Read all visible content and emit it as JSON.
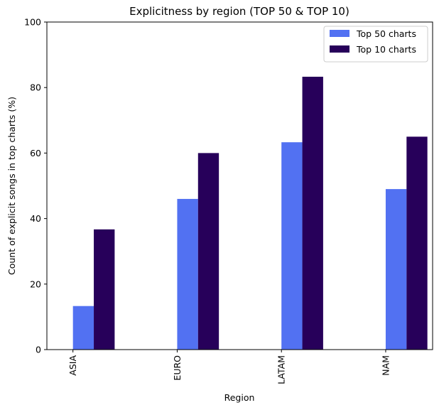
{
  "chart_data": {
    "type": "bar",
    "title": "Explicitness by region (TOP 50 & TOP 10)",
    "xlabel": "Region",
    "ylabel": "Count of explicit songs in top charts (%)",
    "categories": [
      "ASIA",
      "EURO",
      "LATAM",
      "NAM"
    ],
    "series": [
      {
        "name": "Top 50 charts",
        "color": "#5271f2",
        "values": [
          13.3,
          46.0,
          63.3,
          49.0
        ]
      },
      {
        "name": "Top 10 charts",
        "color": "#27005a",
        "values": [
          36.7,
          60.0,
          83.3,
          65.0
        ]
      }
    ],
    "ylim": [
      0,
      100
    ],
    "yticks": [
      0,
      20,
      40,
      60,
      80,
      100
    ],
    "grid": false,
    "legend_position": "top-right"
  }
}
